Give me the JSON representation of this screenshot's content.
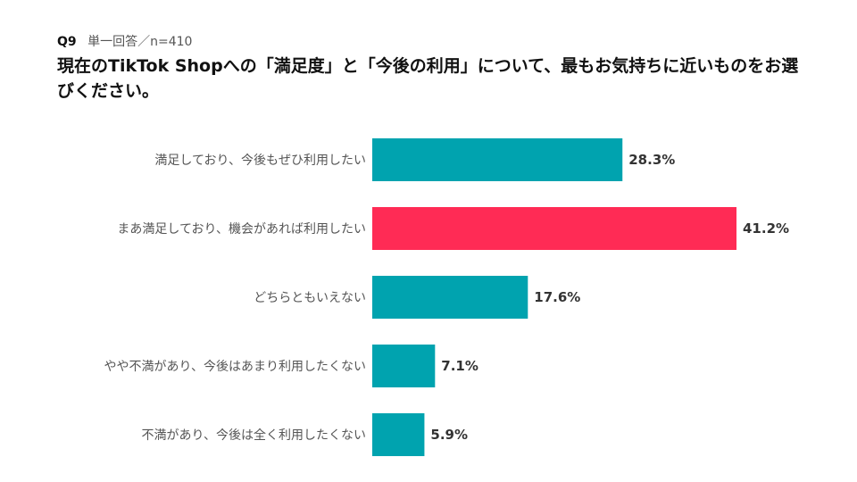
{
  "question": {
    "number": "Q9",
    "meta": "単一回答／n=410",
    "title": "現在のTikTok Shopへの「満足度」と「今後の利用」について、最もお気持ちに近いものをお選びください。"
  },
  "chart_data": {
    "type": "bar",
    "orientation": "horizontal",
    "categories": [
      "満足しており、今後もぜひ利用したい",
      "まあ満足しており、機会があれば利用したい",
      "どちらともいえない",
      "やや不満があり、今後はあまり利用したくない",
      "不満があり、今後は全く利用したくない"
    ],
    "values": [
      28.3,
      41.2,
      17.6,
      7.1,
      5.9
    ],
    "value_labels": [
      "28.3%",
      "41.2%",
      "17.6%",
      "7.1%",
      "5.9%"
    ],
    "unit": "%",
    "xlim": [
      0,
      41.2
    ],
    "colors": [
      "#00A3AF",
      "#FF2B55",
      "#00A3AF",
      "#00A3AF",
      "#00A3AF"
    ],
    "highlight_color": "#FF2B55",
    "base_color": "#00A3AF",
    "grid": false,
    "legend": "none"
  }
}
